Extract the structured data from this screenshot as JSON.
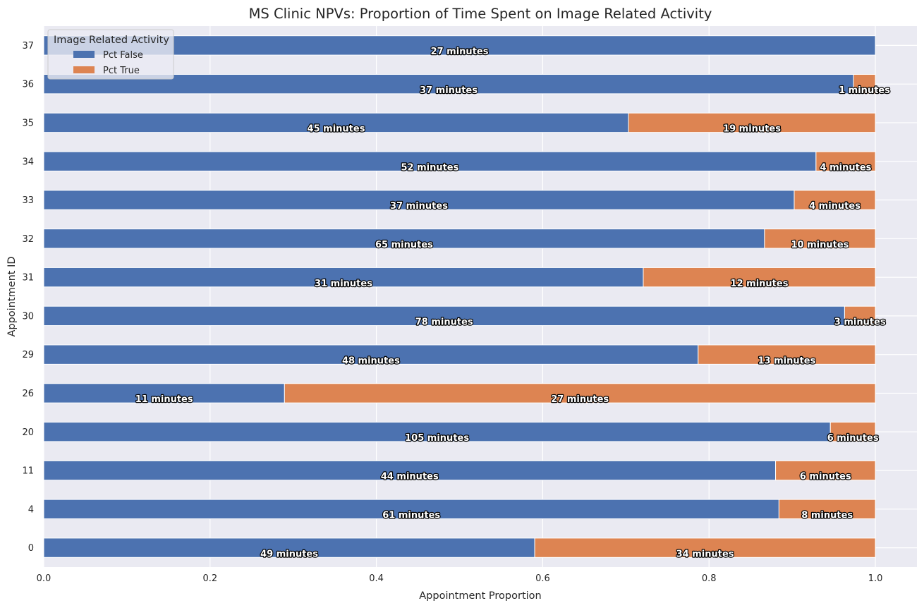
{
  "chart_data": {
    "type": "bar",
    "orientation": "horizontal",
    "stacked": true,
    "title": "MS Clinic NPVs: Proportion of Time Spent on Image Related Activity",
    "xlabel": "Appointment Proportion",
    "ylabel": "Appointment ID",
    "xlim": [
      0,
      1.05
    ],
    "xticks": [
      "0.0",
      "0.2",
      "0.4",
      "0.6",
      "0.8",
      "1.0"
    ],
    "grid": true,
    "legend": {
      "title": "Image Related Activity",
      "position": "top-left"
    },
    "categories": [
      "0",
      "4",
      "11",
      "20",
      "26",
      "29",
      "30",
      "31",
      "32",
      "33",
      "34",
      "35",
      "36",
      "37"
    ],
    "series": [
      {
        "name": "Pct False",
        "color": "#4c72b0",
        "values": [
          0.5904,
          0.8841,
          0.88,
          0.9459,
          0.2895,
          0.7869,
          0.963,
          0.7209,
          0.8667,
          0.9024,
          0.9286,
          0.7031,
          0.9737,
          1.0
        ],
        "labels": [
          "49 minutes",
          "61 minutes",
          "44 minutes",
          "105 minutes",
          "11 minutes",
          "48 minutes",
          "78 minutes",
          "31 minutes",
          "65 minutes",
          "37 minutes",
          "52 minutes",
          "45 minutes",
          "37 minutes",
          "27 minutes"
        ]
      },
      {
        "name": "Pct True",
        "color": "#dd8452",
        "values": [
          0.4096,
          0.1159,
          0.12,
          0.0541,
          0.7105,
          0.2131,
          0.037,
          0.2791,
          0.1333,
          0.0976,
          0.0714,
          0.2969,
          0.0263,
          0.0
        ],
        "labels": [
          "34 minutes",
          "8 minutes",
          "6 minutes",
          "6 minutes",
          "27 minutes",
          "13 minutes",
          "3 minutes",
          "12 minutes",
          "10 minutes",
          "4 minutes",
          "4 minutes",
          "19 minutes",
          "1 minutes",
          ""
        ]
      }
    ]
  }
}
